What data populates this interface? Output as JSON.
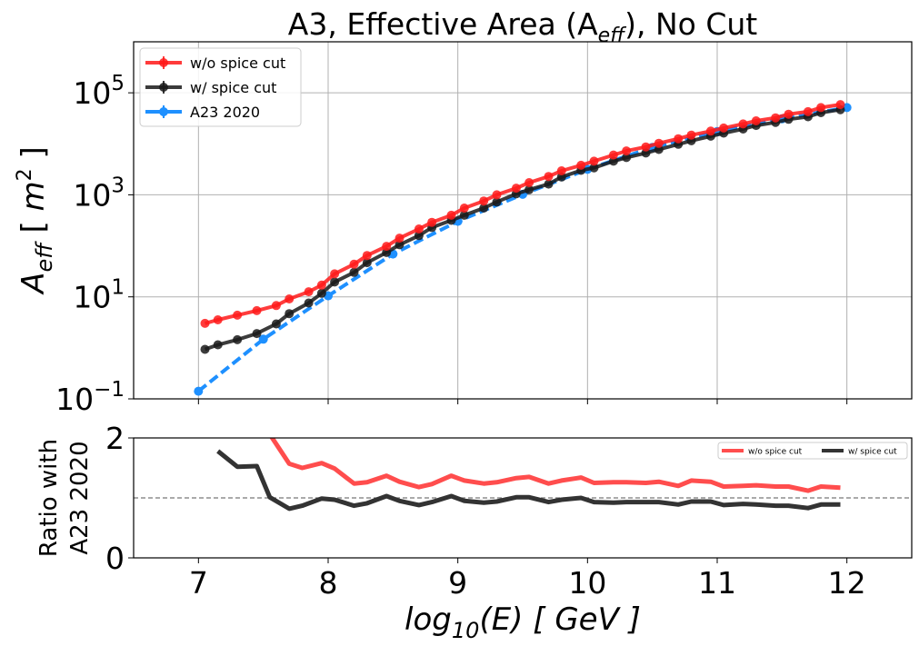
{
  "chart_data": [
    {
      "type": "line",
      "title": "A3, Effective Area (A",
      "title_sub": "eff",
      "title_tail": "), No Cut",
      "ylabel_main": "A",
      "ylabel_sub": "eff",
      "ylabel_tail_open": " [ ",
      "ylabel_m": "m",
      "ylabel_sup": "2",
      "ylabel_tail_close": " ]",
      "yscale": "log",
      "ylim_exp": [
        -1,
        6
      ],
      "xlim": [
        6.5,
        12.5
      ],
      "grid": true,
      "yticks": [
        {
          "base": "10",
          "exp": "−1",
          "value_exp": -1
        },
        {
          "base": "10",
          "exp": "1",
          "value_exp": 1
        },
        {
          "base": "10",
          "exp": "3",
          "value_exp": 3
        },
        {
          "base": "10",
          "exp": "5",
          "value_exp": 5
        }
      ],
      "legend_position": "top-left",
      "series": [
        {
          "name": "w/o spice cut",
          "color": "#ff1a1a",
          "style": "solid",
          "x": [
            7.05,
            7.15,
            7.3,
            7.45,
            7.6,
            7.7,
            7.85,
            7.95,
            8.05,
            8.2,
            8.3,
            8.45,
            8.55,
            8.7,
            8.8,
            8.95,
            9.05,
            9.2,
            9.3,
            9.45,
            9.55,
            9.7,
            9.8,
            9.95,
            10.05,
            10.2,
            10.3,
            10.45,
            10.55,
            10.7,
            10.8,
            10.95,
            11.05,
            11.2,
            11.3,
            11.45,
            11.55,
            11.7,
            11.8,
            11.95
          ],
          "y_exp": [
            0.48,
            0.55,
            0.64,
            0.73,
            0.83,
            0.96,
            1.1,
            1.23,
            1.45,
            1.64,
            1.81,
            1.99,
            2.15,
            2.33,
            2.46,
            2.6,
            2.74,
            2.88,
            3.0,
            3.13,
            3.24,
            3.36,
            3.47,
            3.58,
            3.66,
            3.78,
            3.86,
            3.94,
            4.01,
            4.1,
            4.17,
            4.25,
            4.31,
            4.39,
            4.45,
            4.51,
            4.58,
            4.63,
            4.71,
            4.77
          ]
        },
        {
          "name": "w/ spice cut",
          "color": "#1a1a1a",
          "style": "solid",
          "x": [
            7.05,
            7.15,
            7.3,
            7.45,
            7.6,
            7.7,
            7.85,
            7.95,
            8.05,
            8.2,
            8.3,
            8.45,
            8.55,
            8.7,
            8.8,
            8.95,
            9.05,
            9.2,
            9.3,
            9.45,
            9.55,
            9.7,
            9.8,
            9.95,
            10.05,
            10.2,
            10.3,
            10.45,
            10.55,
            10.7,
            10.8,
            10.95,
            11.05,
            11.2,
            11.3,
            11.45,
            11.55,
            11.7,
            11.8,
            11.95
          ],
          "y_exp": [
            -0.03,
            0.06,
            0.16,
            0.28,
            0.47,
            0.67,
            0.88,
            1.07,
            1.29,
            1.48,
            1.67,
            1.87,
            2.02,
            2.2,
            2.36,
            2.5,
            2.6,
            2.74,
            2.86,
            3.02,
            3.1,
            3.21,
            3.35,
            3.48,
            3.53,
            3.66,
            3.73,
            3.82,
            3.89,
            3.99,
            4.06,
            4.15,
            4.21,
            4.29,
            4.36,
            4.42,
            4.48,
            4.53,
            4.61,
            4.67
          ]
        },
        {
          "name": "A23 2020",
          "color": "#1e90ff",
          "style": "dashed",
          "x": [
            7.0,
            7.5,
            8.0,
            8.5,
            9.0,
            9.5,
            10.0,
            10.5,
            11.0,
            11.5,
            12.0
          ],
          "y_exp": [
            -0.85,
            0.17,
            1.02,
            1.84,
            2.48,
            3.01,
            3.5,
            3.93,
            4.24,
            4.49,
            4.71
          ]
        }
      ]
    },
    {
      "type": "line",
      "ylabel_line1": "Ratio with",
      "ylabel_line2": "A23 2020",
      "xlabel_main": "log",
      "xlabel_sub": "10",
      "xlabel_tail": "(E) [ GeV ]",
      "xlim": [
        6.5,
        12.5
      ],
      "ylim": [
        0,
        2
      ],
      "yticks": [
        "0",
        "2"
      ],
      "xticks": [
        "7",
        "8",
        "9",
        "10",
        "11",
        "12"
      ],
      "reference_line": 1.0,
      "legend_position": "top-right",
      "series": [
        {
          "name": "w/o spice cut",
          "color": "#ff4d4d",
          "x": [
            7.55,
            7.7,
            7.8,
            7.95,
            8.05,
            8.2,
            8.3,
            8.45,
            8.55,
            8.7,
            8.8,
            8.95,
            9.05,
            9.2,
            9.3,
            9.45,
            9.55,
            9.7,
            9.8,
            9.95,
            10.05,
            10.2,
            10.3,
            10.45,
            10.55,
            10.7,
            10.8,
            10.95,
            11.05,
            11.2,
            11.3,
            11.45,
            11.55,
            11.7,
            11.8,
            11.95
          ],
          "y": [
            2.06,
            1.57,
            1.5,
            1.58,
            1.49,
            1.24,
            1.26,
            1.37,
            1.27,
            1.18,
            1.23,
            1.37,
            1.29,
            1.24,
            1.26,
            1.33,
            1.35,
            1.24,
            1.29,
            1.34,
            1.25,
            1.26,
            1.26,
            1.25,
            1.27,
            1.2,
            1.29,
            1.27,
            1.19,
            1.2,
            1.21,
            1.19,
            1.19,
            1.12,
            1.19,
            1.17
          ]
        },
        {
          "name": "w/ spice cut",
          "color": "#333333",
          "x": [
            7.15,
            7.3,
            7.45,
            7.55,
            7.7,
            7.8,
            7.95,
            8.05,
            8.2,
            8.3,
            8.45,
            8.55,
            8.7,
            8.8,
            8.95,
            9.05,
            9.2,
            9.3,
            9.45,
            9.55,
            9.7,
            9.8,
            9.95,
            10.05,
            10.2,
            10.3,
            10.45,
            10.55,
            10.7,
            10.8,
            10.95,
            11.05,
            11.2,
            11.3,
            11.45,
            11.55,
            11.7,
            11.8,
            11.95
          ],
          "y": [
            1.78,
            1.52,
            1.53,
            1.01,
            0.82,
            0.87,
            0.99,
            0.97,
            0.87,
            0.91,
            1.03,
            0.95,
            0.88,
            0.93,
            1.03,
            0.95,
            0.92,
            0.94,
            1.01,
            1.01,
            0.93,
            0.97,
            1.0,
            0.93,
            0.92,
            0.93,
            0.93,
            0.93,
            0.89,
            0.94,
            0.94,
            0.88,
            0.9,
            0.89,
            0.87,
            0.87,
            0.83,
            0.89,
            0.89
          ]
        }
      ]
    }
  ]
}
